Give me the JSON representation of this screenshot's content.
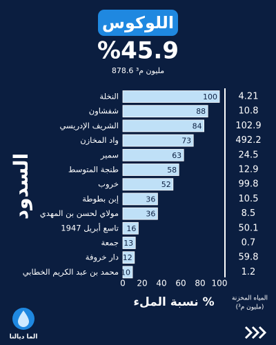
{
  "header": {
    "title": "اللوكوس",
    "percentage": "%45.9",
    "volume": "878.6 مليون م³"
  },
  "chart_data": {
    "type": "bar",
    "orientation": "horizontal",
    "y_label": "السدود",
    "x_label": "نسبة الملء %",
    "categories": [
      "النخلة",
      "شفشاون",
      "الشريف الإدريسي",
      "واد المخازن",
      "سمير",
      "طنجة المتوسط",
      "خروب",
      "إبن بطوطة",
      "مولاي لحسن بن المهدي",
      "تاسع أبريل 1947",
      "جمعة",
      "دار خروفة",
      "محمد بن عبد الكريم الخطابي"
    ],
    "values": [
      100,
      88,
      84,
      73,
      63,
      58,
      52,
      36,
      36,
      16,
      13,
      12,
      10
    ],
    "color": "#bfe0f7",
    "xlim": [
      0,
      100
    ],
    "xticks": [
      0,
      20,
      40,
      60,
      80,
      100
    ],
    "storage": {
      "title": "المياه المخزنة",
      "unit": "(مليون م³)",
      "values": [
        4.21,
        10.8,
        102.9,
        492.2,
        24.5,
        12.9,
        99.8,
        10.5,
        8.5,
        50.1,
        0.7,
        59.8,
        1.2
      ]
    }
  },
  "brand": "الما ديالنا"
}
